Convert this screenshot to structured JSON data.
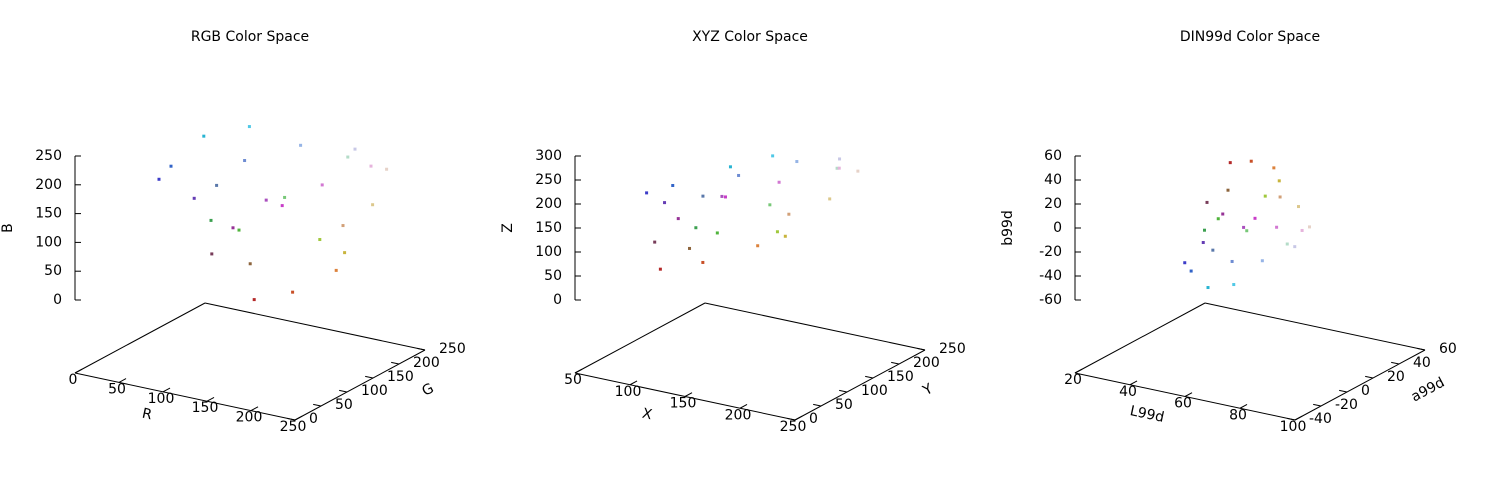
{
  "chart_data": [
    {
      "type": "scatter3d",
      "title": "RGB Color Space",
      "xlabel": "R",
      "ylabel": "G",
      "zlabel": "B",
      "xlim": [
        0,
        250
      ],
      "ylim": [
        0,
        250
      ],
      "zlim": [
        0,
        250
      ],
      "xticks": [
        0,
        50,
        100,
        150,
        200,
        250
      ],
      "yticks": [
        0,
        50,
        100,
        150,
        200,
        250
      ],
      "zticks": [
        0,
        50,
        100,
        150,
        200,
        250
      ],
      "points": {
        "x": [
          60,
          50,
          40,
          80,
          100,
          150,
          200,
          210,
          180,
          200,
          220,
          200,
          160,
          80,
          60,
          120,
          220,
          230,
          200,
          150,
          110,
          170,
          210,
          180,
          90,
          230,
          140,
          120
        ],
        "y": [
          60,
          100,
          180,
          200,
          60,
          50,
          60,
          120,
          40,
          80,
          130,
          180,
          200,
          180,
          160,
          200,
          200,
          210,
          200,
          180,
          140,
          80,
          160,
          220,
          120,
          180,
          100,
          60
        ],
        "z": [
          200,
          200,
          210,
          230,
          180,
          150,
          200,
          210,
          40,
          40,
          60,
          60,
          60,
          60,
          80,
          120,
          140,
          200,
          230,
          230,
          210,
          190,
          120,
          200,
          170,
          220,
          60,
          90
        ],
        "colors": [
          "#3c3cc8",
          "#3264c8",
          "#28b4d2",
          "#50c8e6",
          "#643cb4",
          "#963296",
          "#c83cc8",
          "#d278d2",
          "#b42828",
          "#c85028",
          "#dc823c",
          "#c8b43c",
          "#a0c83c",
          "#50b43c",
          "#3ca050",
          "#78c878",
          "#dcc88c",
          "#e6d2c8",
          "#c8c8e6",
          "#96b4e6",
          "#6e8cd2",
          "#aa50be",
          "#d2a078",
          "#b4dcc8",
          "#5a78aa",
          "#e6b4dc",
          "#8c643c",
          "#783c5a"
        ]
      }
    },
    {
      "type": "scatter3d",
      "title": "XYZ Color Space",
      "xlabel": "X",
      "ylabel": "Y",
      "zlabel": "Z",
      "xlim": [
        50,
        250
      ],
      "ylim": [
        0,
        250
      ],
      "zlim": [
        0,
        300
      ],
      "xticks": [
        50,
        100,
        150,
        200,
        250
      ],
      "yticks": [
        0,
        50,
        100,
        150,
        200,
        250
      ],
      "zticks": [
        0,
        50,
        100,
        150,
        200,
        250,
        300
      ],
      "points": {
        "x": [
          82,
          93,
          119,
          146,
          95,
          107,
          140,
          167,
          95,
          118,
          148,
          158,
          148,
          108,
          97,
          143,
          187,
          206,
          195,
          168,
          133,
          133,
          165,
          189,
          111,
          199,
          104,
          87
        ],
        "y": [
          70,
          97,
          153,
          177,
          77,
          78,
          99,
          145,
          69,
          102,
          144,
          176,
          182,
          151,
          133,
          178,
          200,
          214,
          202,
          177,
          139,
          107,
          168,
          210,
          117,
          193,
          106,
          75
        ],
        "z": [
          198,
          203,
          222,
          244,
          180,
          152,
          201,
          218,
          46,
          52,
          77,
          83,
          84,
          80,
          96,
          140,
          161,
          220,
          247,
          243,
          219,
          194,
          137,
          220,
          178,
          235,
          72,
          95
        ],
        "colors": [
          "#3c3cc8",
          "#3264c8",
          "#28b4d2",
          "#50c8e6",
          "#643cb4",
          "#963296",
          "#c83cc8",
          "#d278d2",
          "#b42828",
          "#c85028",
          "#dc823c",
          "#c8b43c",
          "#a0c83c",
          "#50b43c",
          "#3ca050",
          "#78c878",
          "#dcc88c",
          "#e6d2c8",
          "#c8c8e6",
          "#96b4e6",
          "#6e8cd2",
          "#aa50be",
          "#d2a078",
          "#b4dcc8",
          "#5a78aa",
          "#e6b4dc",
          "#8c643c",
          "#783c5a"
        ]
      }
    },
    {
      "type": "scatter3d",
      "title": "DIN99d Color Space",
      "xlabel": "L99d",
      "ylabel": "a99d",
      "zlabel": "b99d",
      "xlim": [
        20,
        100
      ],
      "ylim": [
        -40,
        60
      ],
      "zlim": [
        -60,
        60
      ],
      "xticks": [
        20,
        40,
        60,
        80,
        100
      ],
      "yticks": [
        -40,
        -20,
        0,
        20,
        40,
        60
      ],
      "zticks": [
        -60,
        -40,
        -20,
        0,
        20,
        40,
        60
      ],
      "points": {
        "x": [
          41,
          49,
          66,
          73,
          43,
          43,
          50,
          64,
          41,
          51,
          63,
          73,
          75,
          65,
          60,
          73,
          80,
          84,
          81,
          73,
          62,
          52,
          70,
          83,
          55,
          78,
          52,
          42
        ],
        "y": [
          0,
          -12,
          -35,
          -30,
          10,
          25,
          35,
          22,
          35,
          30,
          22,
          5,
          -10,
          -25,
          -25,
          -20,
          5,
          5,
          0,
          -8,
          -8,
          22,
          12,
          -10,
          -8,
          12,
          10,
          15
        ],
        "z": [
          -42,
          -38,
          -30,
          -27,
          -30,
          -15,
          -21,
          -14,
          21,
          30,
          35,
          39,
          36,
          21,
          9,
          12,
          21,
          6,
          -9,
          -20,
          -26,
          -20,
          20,
          0,
          -20,
          -4,
          18,
          0
        ],
        "colors": [
          "#3c3cc8",
          "#3264c8",
          "#28b4d2",
          "#50c8e6",
          "#643cb4",
          "#963296",
          "#c83cc8",
          "#d278d2",
          "#b42828",
          "#c85028",
          "#dc823c",
          "#c8b43c",
          "#a0c83c",
          "#50b43c",
          "#3ca050",
          "#78c878",
          "#dcc88c",
          "#e6d2c8",
          "#c8c8e6",
          "#96b4e6",
          "#6e8cd2",
          "#aa50be",
          "#d2a078",
          "#b4dcc8",
          "#5a78aa",
          "#e6b4dc",
          "#8c643c",
          "#783c5a"
        ]
      }
    }
  ]
}
